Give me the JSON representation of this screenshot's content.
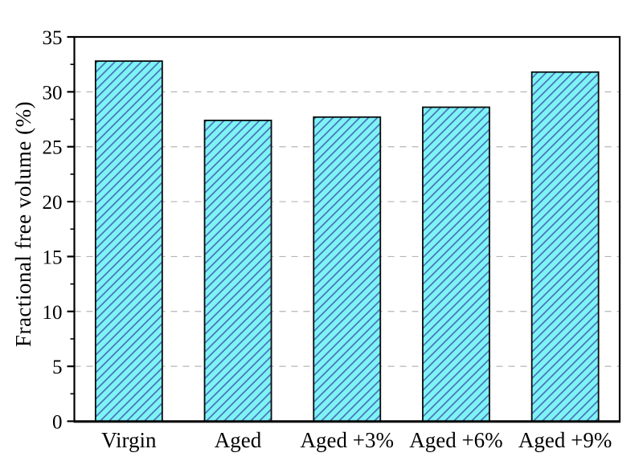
{
  "figure": {
    "background_color": "#ffffff"
  },
  "chart_data": {
    "type": "bar",
    "title": "",
    "categories": [
      "Virgin",
      "Aged",
      "Aged +3%",
      "Aged +6%",
      "Aged +9%"
    ],
    "values": [
      32.8,
      27.4,
      27.7,
      28.6,
      31.8
    ],
    "xlabel": "",
    "ylabel": "Fractional free volume (%)",
    "ylim": [
      0,
      35
    ],
    "yticks": [
      0,
      5,
      10,
      15,
      20,
      25,
      30,
      35
    ],
    "ytick_labels": [
      "0",
      "5",
      "10",
      "15",
      "20",
      "25",
      "30",
      "35"
    ],
    "minor_tick_step": 2.5,
    "gridlines": {
      "orientation": "horizontal",
      "style": "dashed",
      "at": [
        5,
        10,
        15,
        20,
        25,
        30
      ],
      "color": "#b5b5b5"
    },
    "legend": "none",
    "bar_style": {
      "fill_color": "#7df3f6",
      "hatch": "/",
      "hatch_color": "#4a74b8",
      "edge_color": "#0a0a0a"
    },
    "axis_color": "#000000"
  }
}
